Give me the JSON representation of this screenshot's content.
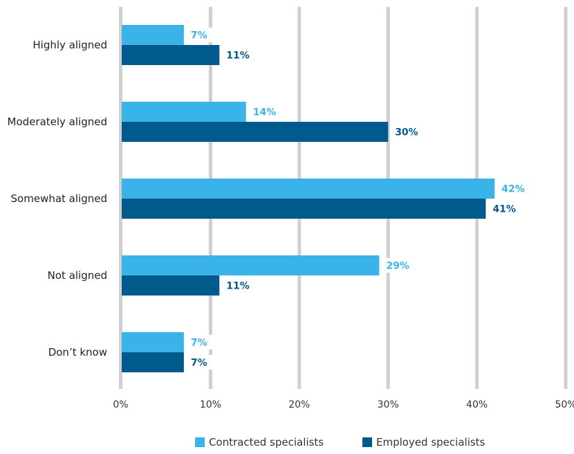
{
  "chart_data": {
    "type": "bar",
    "orientation": "horizontal",
    "categories": [
      "Highly aligned",
      "Moderately aligned",
      "Somewhat aligned",
      "Not aligned",
      "Don’t know"
    ],
    "series": [
      {
        "name": "Contracted specialists",
        "values": [
          7,
          14,
          42,
          29,
          7
        ],
        "color": "#3ab4e8",
        "labels": [
          "7%",
          "14%",
          "42%",
          "29%",
          "7%"
        ]
      },
      {
        "name": "Employed specialists",
        "values": [
          11,
          30,
          41,
          11,
          7
        ],
        "color": "#015a8c",
        "labels": [
          "11%",
          "30%",
          "41%",
          "11%",
          "7%"
        ]
      }
    ],
    "xlim": [
      0,
      50
    ],
    "ticks": [
      0,
      10,
      20,
      30,
      40,
      50
    ],
    "tick_labels": [
      "0%",
      "10%",
      "20%",
      "30%",
      "40%",
      "50%"
    ],
    "grid": true,
    "gridline_color": "#d0d0d0",
    "legend_position": "bottom"
  }
}
